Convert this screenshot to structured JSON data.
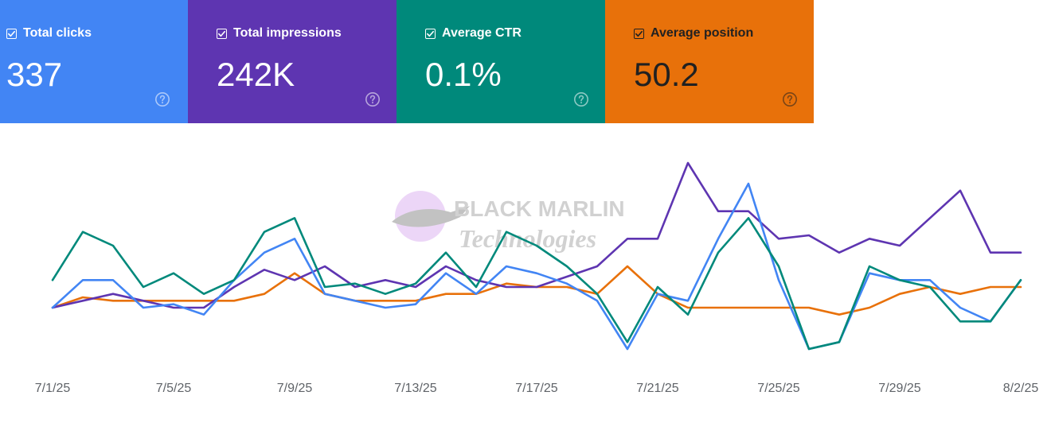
{
  "metrics": [
    {
      "label": "Total clicks",
      "value": "337",
      "color": "#4285f4",
      "text_color": "#ffffff",
      "checked": true,
      "icon": "help-circle-icon"
    },
    {
      "label": "Total impressions",
      "value": "242K",
      "color": "#5e35b1",
      "text_color": "#ffffff",
      "checked": true,
      "icon": "help-circle-icon"
    },
    {
      "label": "Average CTR",
      "value": "0.1%",
      "color": "#00897b",
      "text_color": "#ffffff",
      "checked": true,
      "icon": "help-circle-icon"
    },
    {
      "label": "Average position",
      "value": "50.2",
      "color": "#e8710a",
      "text_color": "#212121",
      "checked": true,
      "icon": "help-circle-icon"
    }
  ],
  "watermark": {
    "line1": "BLACK MARLIN",
    "line2": "Technologies",
    "icon": "marlin-fish-logo"
  },
  "chart_data": {
    "type": "line",
    "grid": false,
    "legend": "none",
    "x": [
      "7/1/25",
      "7/2/25",
      "7/3/25",
      "7/4/25",
      "7/5/25",
      "7/6/25",
      "7/7/25",
      "7/8/25",
      "7/9/25",
      "7/10/25",
      "7/11/25",
      "7/12/25",
      "7/13/25",
      "7/14/25",
      "7/15/25",
      "7/16/25",
      "7/17/25",
      "7/18/25",
      "7/19/25",
      "7/20/25",
      "7/21/25",
      "7/22/25",
      "7/23/25",
      "7/24/25",
      "7/25/25",
      "7/26/25",
      "7/27/25",
      "7/28/25",
      "7/29/25",
      "7/30/25",
      "7/31/25",
      "8/1/25",
      "8/2/25"
    ],
    "tick_labels": [
      "7/1/25",
      "7/5/25",
      "7/9/25",
      "7/13/25",
      "7/17/25",
      "7/21/25",
      "7/25/25",
      "7/29/25",
      "8/2/25"
    ],
    "series": [
      {
        "metric": "Total clicks",
        "color": "#4285f4",
        "values": [
          6,
          10,
          10,
          6,
          6.5,
          5,
          10,
          14,
          16,
          8,
          7,
          6,
          6.5,
          11,
          8,
          12,
          11,
          9.5,
          7,
          0,
          8,
          7,
          16,
          24,
          10,
          0,
          1,
          11,
          10,
          10,
          6,
          4,
          10
        ]
      },
      {
        "metric": "Total impressions",
        "color": "#5e35b1",
        "values": [
          6,
          7,
          8,
          7,
          6,
          6,
          9,
          11.5,
          10,
          12,
          9,
          10,
          9,
          12,
          10,
          9,
          9,
          10.5,
          12,
          16,
          16,
          27,
          20,
          20,
          16,
          16.5,
          14,
          16,
          15,
          19,
          23,
          14,
          14
        ]
      },
      {
        "metric": "Average CTR",
        "color": "#00897b",
        "values": [
          10,
          17,
          15,
          9,
          11,
          8,
          10,
          17,
          19,
          9,
          9.5,
          8,
          9.5,
          14,
          9,
          17,
          15,
          12,
          8,
          1,
          9,
          5,
          14,
          19,
          12,
          0,
          1,
          12,
          10,
          9,
          4,
          4,
          10
        ]
      },
      {
        "metric": "Average position",
        "color": "#e8710a",
        "values": [
          6,
          7.5,
          7,
          7,
          7,
          7,
          7,
          8,
          11,
          8,
          7,
          7,
          7,
          8,
          8,
          9.5,
          9,
          9,
          8,
          12,
          8,
          6,
          6,
          6,
          6,
          6,
          5,
          6,
          8,
          9,
          8,
          9,
          9
        ]
      }
    ]
  }
}
